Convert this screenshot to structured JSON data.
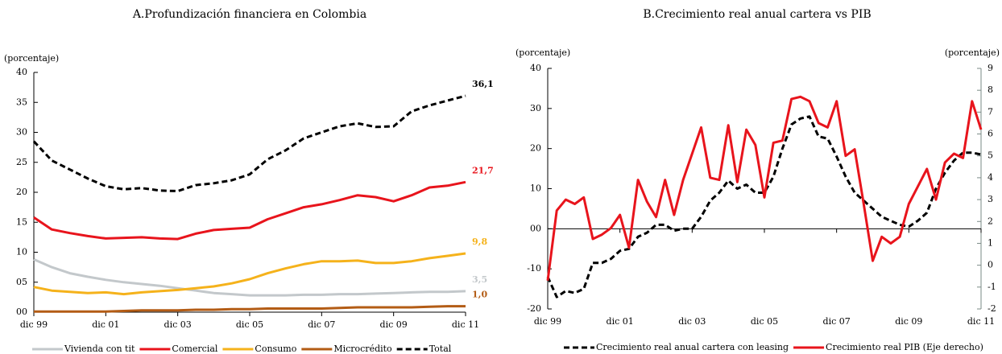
{
  "chart_data": [
    {
      "type": "line",
      "title": "A.Profundización financiera en Colombia",
      "y_label": "(porcentaje)",
      "categories": [
        "dic 99",
        null,
        null,
        null,
        "dic 01",
        null,
        null,
        null,
        "dic 03",
        null,
        null,
        null,
        "dic 05",
        null,
        null,
        null,
        "dic 07",
        null,
        null,
        null,
        "dic 09",
        null,
        null,
        null,
        "dic 11"
      ],
      "ylim": [
        0,
        40
      ],
      "yticks": [
        {
          "value": 0,
          "label": "00"
        },
        {
          "value": 5,
          "label": "05"
        },
        10,
        15,
        20,
        25,
        30,
        35,
        40
      ],
      "grid": false,
      "series": [
        {
          "name": "Vivienda con tit",
          "color": "#c3c8cb",
          "dash": false,
          "values": [
            8.8,
            7.5,
            6.5,
            5.9,
            5.4,
            5.0,
            4.7,
            4.4,
            4.0,
            3.6,
            3.2,
            3.0,
            2.8,
            2.8,
            2.8,
            2.9,
            2.9,
            3.0,
            3.0,
            3.1,
            3.2,
            3.3,
            3.4,
            3.4,
            3.5
          ],
          "value_labels": [
            null,
            null,
            null,
            null,
            null,
            null,
            null,
            null,
            null,
            null,
            null,
            null,
            null,
            null,
            null,
            null,
            null,
            null,
            null,
            null,
            null,
            null,
            null,
            null,
            "3,5"
          ]
        },
        {
          "name": "Comercial",
          "color": "#e8141c",
          "dash": false,
          "values": [
            15.8,
            13.8,
            13.2,
            12.7,
            12.3,
            12.4,
            12.5,
            12.3,
            12.2,
            13.1,
            13.7,
            13.9,
            14.1,
            15.5,
            16.5,
            17.5,
            18.0,
            18.7,
            19.5,
            19.2,
            18.5,
            19.5,
            20.8,
            21.1,
            21.7
          ],
          "value_labels": [
            null,
            null,
            null,
            null,
            null,
            null,
            null,
            null,
            null,
            null,
            null,
            null,
            null,
            null,
            null,
            null,
            null,
            null,
            null,
            null,
            null,
            null,
            null,
            null,
            "21,7"
          ]
        },
        {
          "name": "Consumo",
          "color": "#f5b21b",
          "dash": false,
          "values": [
            4.2,
            3.6,
            3.4,
            3.2,
            3.3,
            3.0,
            3.3,
            3.5,
            3.7,
            4.0,
            4.3,
            4.8,
            5.5,
            6.5,
            7.3,
            8.0,
            8.5,
            8.5,
            8.6,
            8.2,
            8.2,
            8.5,
            9.0,
            9.4,
            9.8
          ],
          "value_labels": [
            null,
            null,
            null,
            null,
            null,
            null,
            null,
            null,
            null,
            null,
            null,
            null,
            null,
            null,
            null,
            null,
            null,
            null,
            null,
            null,
            null,
            null,
            null,
            null,
            "9,8"
          ]
        },
        {
          "name": "Microcrédito",
          "color": "#b35c15",
          "dash": false,
          "values": [
            0.1,
            0.1,
            0.1,
            0.1,
            0.1,
            0.2,
            0.3,
            0.3,
            0.3,
            0.4,
            0.4,
            0.5,
            0.5,
            0.6,
            0.6,
            0.6,
            0.6,
            0.7,
            0.8,
            0.8,
            0.8,
            0.8,
            0.9,
            1.0,
            1.0
          ],
          "value_labels": [
            null,
            null,
            null,
            null,
            null,
            null,
            null,
            null,
            null,
            null,
            null,
            null,
            null,
            null,
            null,
            null,
            null,
            null,
            null,
            null,
            null,
            null,
            null,
            null,
            "1,0"
          ]
        },
        {
          "name": "Total",
          "color": "#000000",
          "dash": true,
          "values": [
            28.5,
            25.3,
            23.8,
            22.3,
            21.0,
            20.5,
            20.7,
            20.3,
            20.2,
            21.2,
            21.5,
            22.0,
            23.0,
            25.5,
            27.0,
            29.0,
            30.0,
            31.0,
            31.5,
            30.9,
            31.0,
            33.5,
            34.5,
            35.3,
            36.1
          ],
          "value_labels": [
            null,
            null,
            null,
            null,
            null,
            null,
            null,
            null,
            null,
            null,
            null,
            null,
            null,
            null,
            null,
            null,
            null,
            null,
            null,
            null,
            null,
            null,
            null,
            null,
            "36,1"
          ]
        }
      ]
    },
    {
      "type": "line",
      "title": "B.Crecimiento real anual cartera vs PIB",
      "y_label": "(porcentaje)",
      "y2_label": "(porcentaje)",
      "categories": [
        "dic 99",
        null,
        null,
        null,
        null,
        null,
        null,
        null,
        "dic 01",
        null,
        null,
        null,
        null,
        null,
        null,
        null,
        "dic 03",
        null,
        null,
        null,
        null,
        null,
        null,
        null,
        "dic 05",
        null,
        null,
        null,
        null,
        null,
        null,
        null,
        "dic 07",
        null,
        null,
        null,
        null,
        null,
        null,
        null,
        "dic 09",
        null,
        null,
        null,
        null,
        null,
        null,
        null,
        "dic 11"
      ],
      "ylim": [
        -20,
        40
      ],
      "yticks": [
        -20,
        -10,
        {
          "value": 0,
          "label": "00"
        },
        10,
        20,
        30,
        40
      ],
      "y2lim": [
        -2,
        9
      ],
      "y2ticks": [
        -2,
        -1,
        0,
        1,
        2,
        3,
        4,
        5,
        6,
        7,
        8,
        9
      ],
      "grid": false,
      "series": [
        {
          "name": "Crecimiento real anual cartera con leasing",
          "color": "#000000",
          "dash": true,
          "values": [
            -12,
            -17,
            -15.5,
            -16,
            -15,
            -8.5,
            -8.5,
            -7.5,
            -5.5,
            -5,
            -2,
            -1,
            1,
            1,
            -0.5,
            0,
            0,
            3,
            7,
            9,
            12,
            10,
            11,
            9,
            9,
            13,
            20,
            26,
            27.5,
            28,
            23,
            22.5,
            18,
            13,
            9,
            7,
            5,
            3,
            2,
            1,
            0.5,
            2,
            4,
            10,
            14,
            17,
            19,
            19,
            18.5
          ]
        },
        {
          "name": "Crecimiento real PIB (Eje derecho)",
          "color": "#e8141c",
          "dash": false,
          "axis": "y2",
          "values": [
            -0.7,
            2.5,
            3.0,
            2.8,
            3.1,
            1.2,
            1.4,
            1.7,
            2.3,
            0.8,
            3.9,
            2.9,
            2.2,
            3.9,
            2.3,
            3.9,
            5.1,
            6.3,
            4.0,
            3.9,
            6.4,
            3.8,
            6.2,
            5.5,
            3.1,
            5.6,
            5.7,
            7.6,
            7.7,
            7.5,
            6.5,
            6.3,
            7.5,
            5.0,
            5.3,
            2.8,
            0.2,
            1.3,
            1.0,
            1.3,
            2.8,
            3.6,
            4.4,
            3.0,
            4.7,
            5.1,
            4.9,
            7.5,
            6.2
          ]
        }
      ]
    }
  ]
}
